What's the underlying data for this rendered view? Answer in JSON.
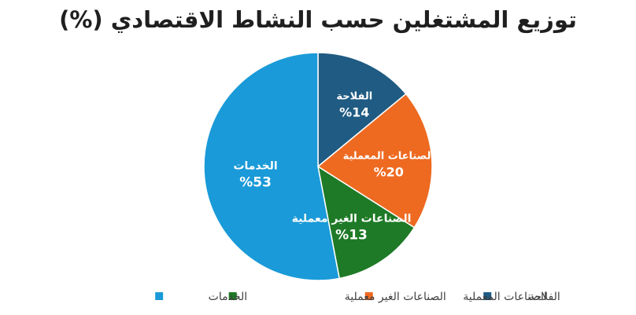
{
  "chart_data": {
    "type": "pie",
    "title": "توزيع المشتغلين حسب النشاط الاقتصادي (%)",
    "slices": [
      {
        "label": "الفلاحة",
        "value": 14,
        "value_label": "%14",
        "color": "#1f5b82"
      },
      {
        "label": "الصناعات المعملية",
        "value": 20,
        "value_label": "%20",
        "color": "#ee6a21"
      },
      {
        "label": "الصناعات الغير معملية",
        "value": 13,
        "value_label": "%13",
        "color": "#1e7a26"
      },
      {
        "label": "الخدمات",
        "value": 53,
        "value_label": "%53",
        "color": "#1a9ad8"
      }
    ],
    "legend": {
      "position": "bottom",
      "order": "right-to-left"
    }
  }
}
